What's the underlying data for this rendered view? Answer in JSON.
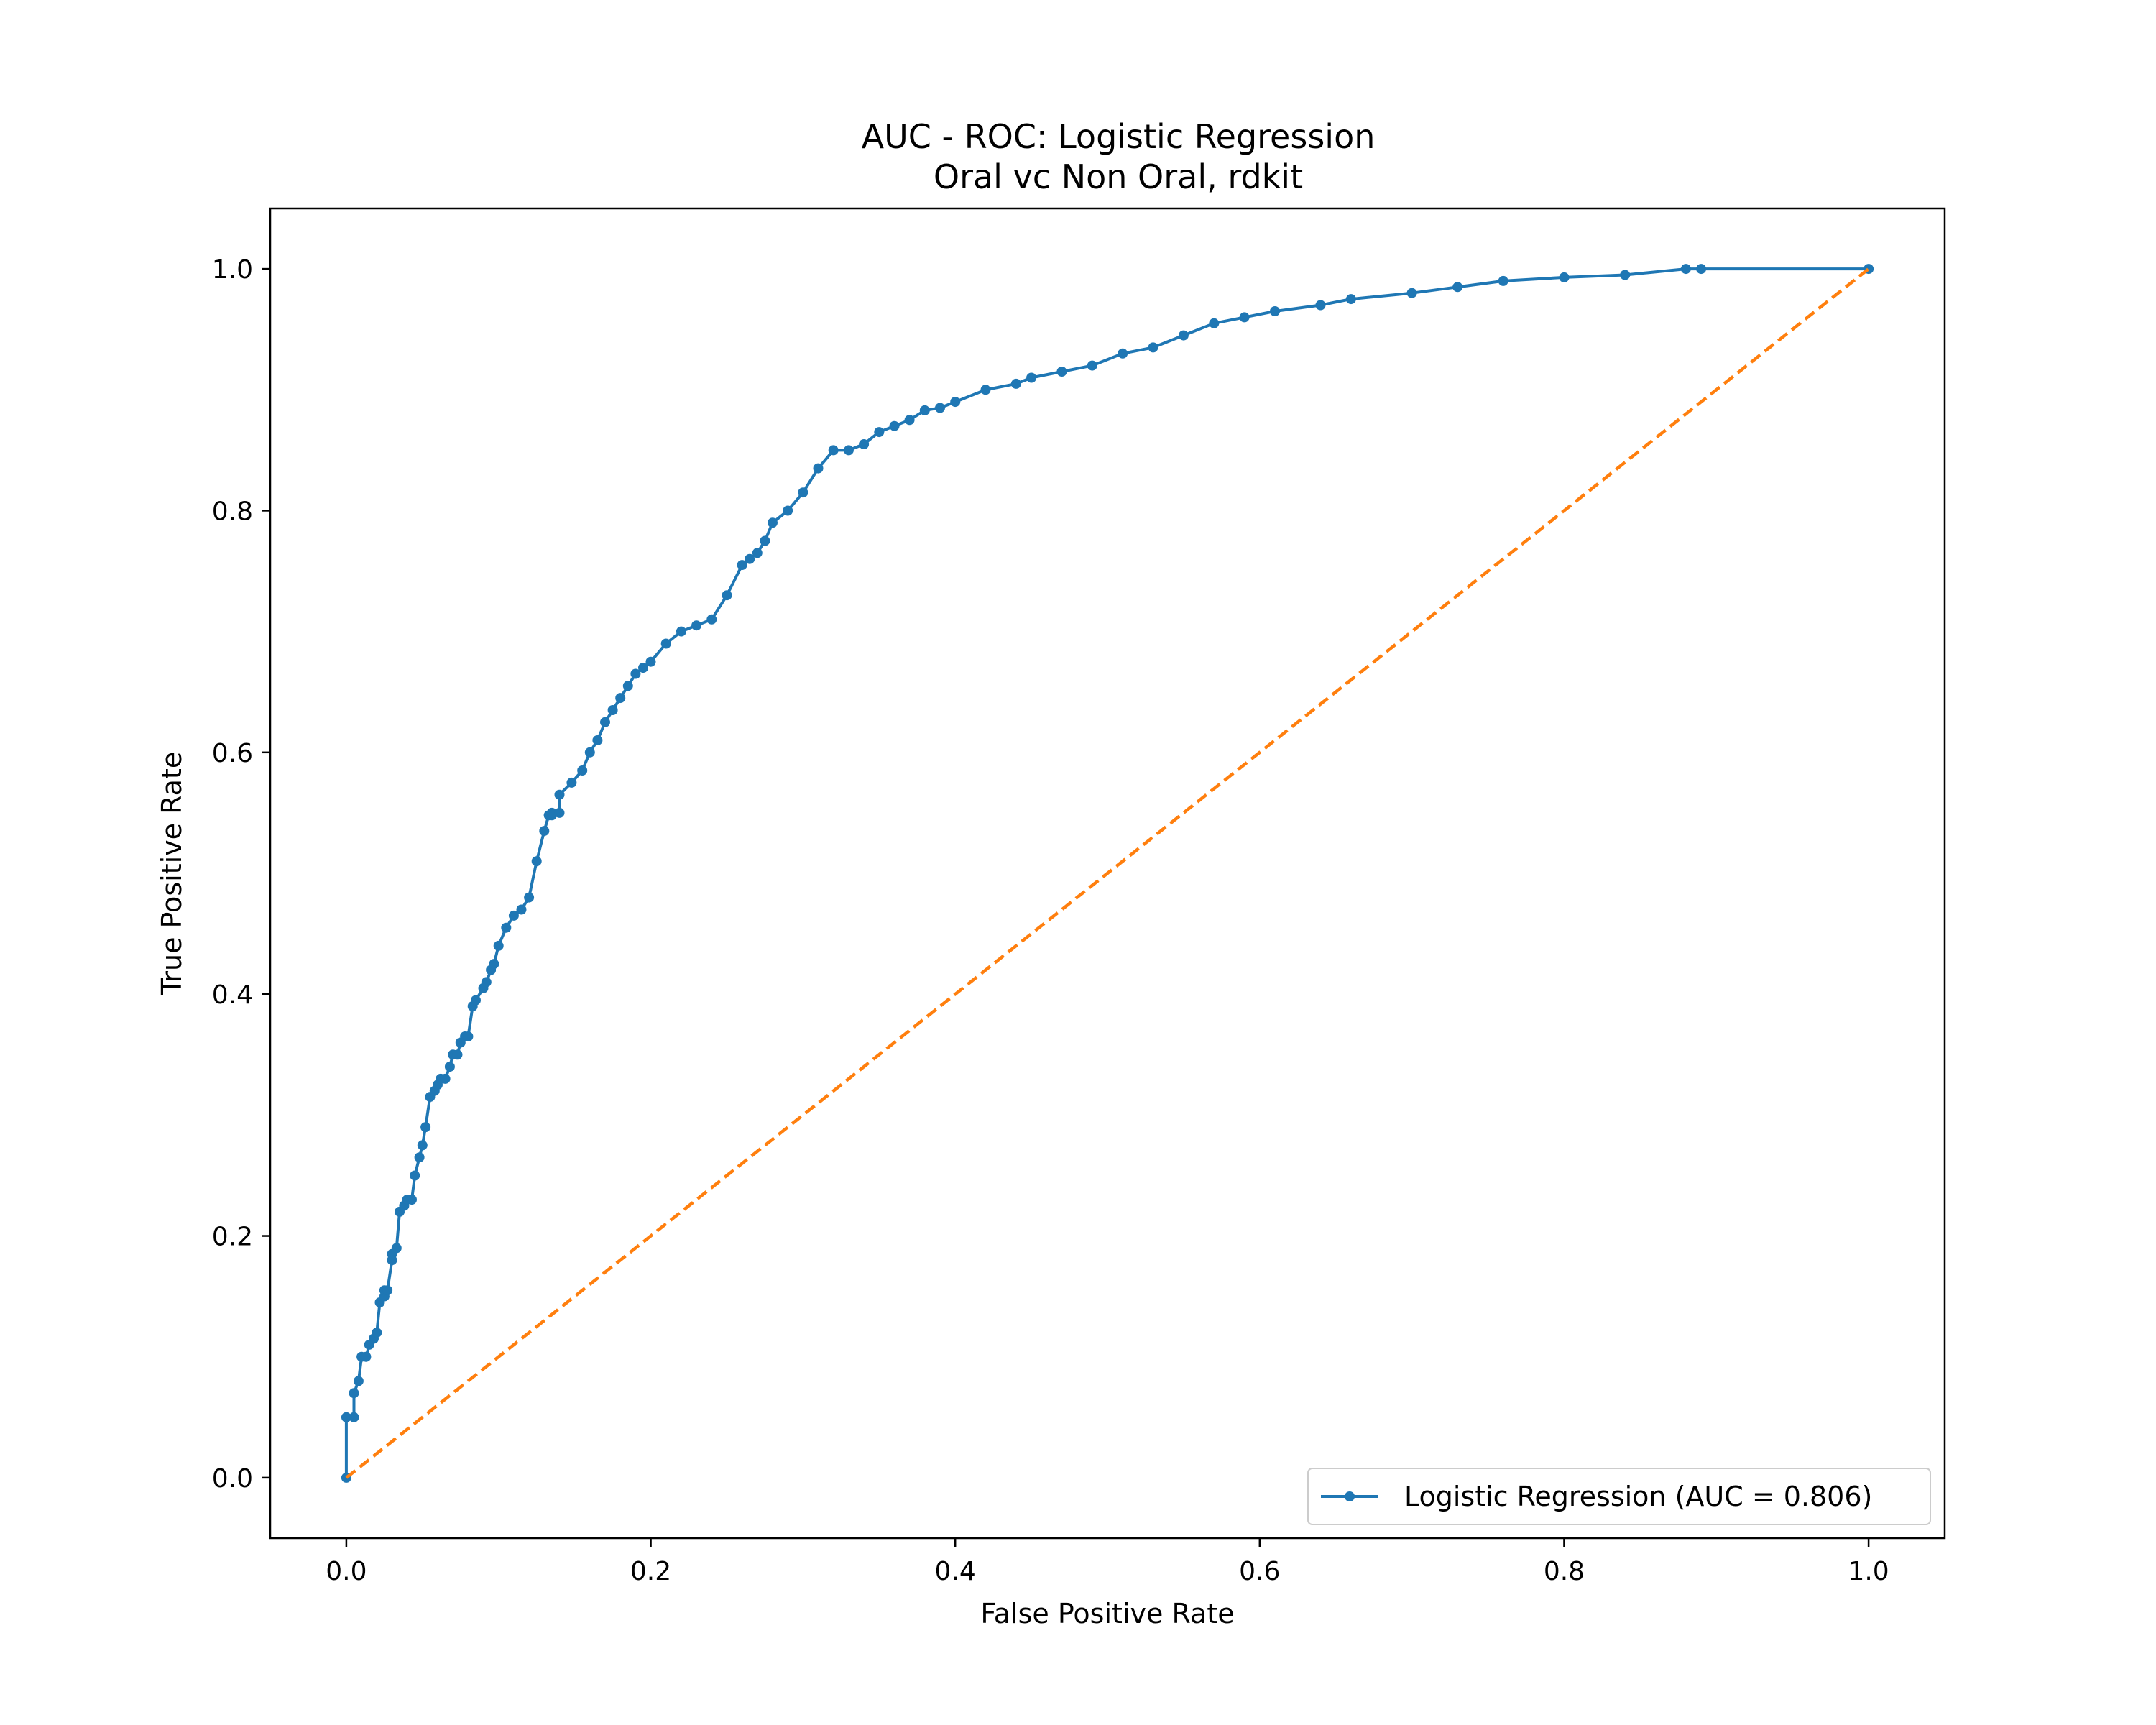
{
  "chart_data": {
    "type": "line",
    "title": "AUC - ROC: Logistic Regression",
    "subtitle": "Oral vc Non Oral, rdkit",
    "xlabel": "False Positive Rate",
    "ylabel": "True Positive Rate",
    "xlim": [
      -0.05,
      1.05
    ],
    "ylim": [
      -0.05,
      1.05
    ],
    "xticks": [
      0.0,
      0.2,
      0.4,
      0.6,
      0.8,
      1.0
    ],
    "yticks": [
      0.0,
      0.2,
      0.4,
      0.6,
      0.8,
      1.0
    ],
    "xtick_labels": [
      "0.0",
      "0.2",
      "0.4",
      "0.6",
      "0.8",
      "1.0"
    ],
    "ytick_labels": [
      "0.0",
      "0.2",
      "0.4",
      "0.6",
      "0.8",
      "1.0"
    ],
    "grid": false,
    "legend_position": "lower-right",
    "series": [
      {
        "name": "Logistic Regression (AUC = 0.806)",
        "color": "#1f77b4",
        "style": "solid-with-markers",
        "x": [
          0.0,
          0.0,
          0.005,
          0.005,
          0.008,
          0.01,
          0.013,
          0.015,
          0.018,
          0.02,
          0.022,
          0.025,
          0.025,
          0.027,
          0.03,
          0.03,
          0.033,
          0.035,
          0.038,
          0.04,
          0.043,
          0.045,
          0.048,
          0.05,
          0.052,
          0.055,
          0.058,
          0.06,
          0.062,
          0.065,
          0.068,
          0.07,
          0.073,
          0.075,
          0.078,
          0.08,
          0.083,
          0.085,
          0.09,
          0.092,
          0.095,
          0.097,
          0.1,
          0.105,
          0.11,
          0.115,
          0.12,
          0.125,
          0.13,
          0.133,
          0.135,
          0.135,
          0.14,
          0.14,
          0.148,
          0.155,
          0.16,
          0.165,
          0.17,
          0.175,
          0.18,
          0.185,
          0.19,
          0.195,
          0.2,
          0.21,
          0.22,
          0.23,
          0.24,
          0.25,
          0.26,
          0.265,
          0.27,
          0.275,
          0.28,
          0.29,
          0.3,
          0.31,
          0.32,
          0.33,
          0.34,
          0.35,
          0.36,
          0.37,
          0.38,
          0.39,
          0.4,
          0.42,
          0.44,
          0.45,
          0.47,
          0.49,
          0.51,
          0.53,
          0.55,
          0.57,
          0.59,
          0.61,
          0.64,
          0.66,
          0.7,
          0.73,
          0.76,
          0.8,
          0.84,
          0.88,
          0.89,
          1.0
        ],
        "y": [
          0.0,
          0.05,
          0.05,
          0.07,
          0.08,
          0.1,
          0.1,
          0.11,
          0.115,
          0.12,
          0.145,
          0.15,
          0.155,
          0.155,
          0.18,
          0.185,
          0.19,
          0.22,
          0.225,
          0.23,
          0.23,
          0.25,
          0.265,
          0.275,
          0.29,
          0.315,
          0.32,
          0.325,
          0.33,
          0.33,
          0.34,
          0.35,
          0.35,
          0.36,
          0.365,
          0.365,
          0.39,
          0.395,
          0.405,
          0.41,
          0.42,
          0.425,
          0.44,
          0.455,
          0.465,
          0.47,
          0.48,
          0.51,
          0.535,
          0.548,
          0.548,
          0.55,
          0.55,
          0.565,
          0.575,
          0.585,
          0.6,
          0.61,
          0.625,
          0.635,
          0.645,
          0.655,
          0.665,
          0.67,
          0.675,
          0.69,
          0.7,
          0.705,
          0.71,
          0.73,
          0.755,
          0.76,
          0.765,
          0.775,
          0.79,
          0.8,
          0.815,
          0.835,
          0.85,
          0.85,
          0.855,
          0.865,
          0.87,
          0.875,
          0.883,
          0.885,
          0.89,
          0.9,
          0.905,
          0.91,
          0.915,
          0.92,
          0.93,
          0.935,
          0.945,
          0.955,
          0.96,
          0.965,
          0.97,
          0.975,
          0.98,
          0.985,
          0.99,
          0.993,
          0.995,
          1.0,
          1.0,
          1.0
        ]
      },
      {
        "name": "",
        "color": "#ff7f0e",
        "style": "dashed",
        "x": [
          0.0,
          1.0
        ],
        "y": [
          0.0,
          1.0
        ]
      }
    ]
  }
}
